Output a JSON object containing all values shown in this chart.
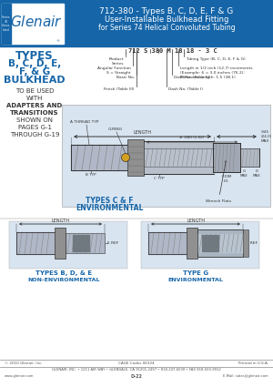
{
  "title_main": "712-380 - Types B, C, D, E, F & G",
  "title_sub1": "User-Installable Bulkhead Fitting",
  "title_sub2": "for Series 74 Helical Convoluted Tubing",
  "header_bg": "#1565a8",
  "header_text_color": "#ffffff",
  "body_bg": "#ffffff",
  "blue_text": "#1565a8",
  "black_text": "#333333",
  "gray_text": "#555555",
  "left_title": [
    "TYPES",
    "B, C, D, E,",
    "F, & G",
    "BULKHEAD"
  ],
  "left_sub": [
    "TO BE USED",
    "WITH",
    "ADAPTERS AND",
    "TRANSITIONS",
    "SHOWN ON",
    "PAGES G-1",
    "THROUGH G-19"
  ],
  "part_number": "712 S 380 M 18 18 - 3 C",
  "footer_copy": "© 2010 Glenair, Inc.",
  "footer_cage": "CAGE Codes 06324",
  "footer_printed": "Printed in U.S.A.",
  "footer_address": "GLENAIR, INC. • 1211 AIR WAY • GLENDALE, CA 91201-2497 • 818-247-6000 • FAX 818-500-9912",
  "footer_web": "www.glenair.com",
  "footer_page": "D-22",
  "footer_email": "E-Mail: sales@glenair.com"
}
